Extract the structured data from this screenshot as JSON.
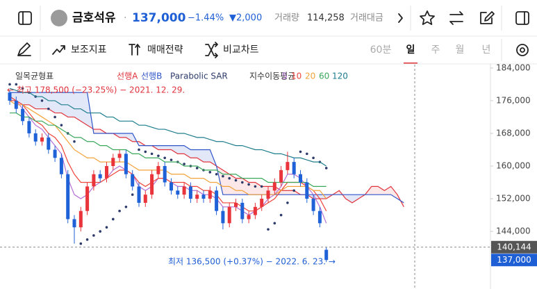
{
  "header": {
    "name": "금호석유",
    "price": "137,000",
    "change_rate": "−1.44%",
    "change": "▼2,000",
    "volume_label": "거래량",
    "volume": "114,258",
    "amount_label": "거래대금"
  },
  "toolbar": {
    "indicators": "보조지표",
    "strategy": "매매전략",
    "compare": "비교차트",
    "periods": [
      "60분",
      "일",
      "주",
      "월",
      "년"
    ],
    "selected_period": 1
  },
  "chart_data": {
    "type": "candlestick",
    "categories": [
      null,
      null,
      null,
      null,
      null,
      null,
      null,
      null,
      null,
      null,
      null,
      null,
      null,
      null,
      null,
      null,
      null,
      null,
      null,
      null,
      null,
      null,
      null,
      null,
      null,
      null,
      null,
      null,
      null,
      null,
      null,
      null,
      null,
      null,
      null,
      null,
      null,
      null,
      null,
      null,
      null,
      null,
      null,
      null,
      null,
      null,
      null,
      null,
      null,
      null,
      null,
      null,
      null,
      null,
      null,
      null,
      null,
      null,
      null,
      null,
      null,
      null
    ],
    "ylim": [
      129900,
      185000
    ],
    "yticks": [
      {
        "value": 144000,
        "label": "144,000"
      },
      {
        "value": 152000,
        "label": "152,000"
      },
      {
        "value": 160000,
        "label": "160,000"
      },
      {
        "value": 168000,
        "label": "168,000"
      },
      {
        "value": 176000,
        "label": "176,000"
      },
      {
        "value": 184000,
        "label": "184,000"
      }
    ],
    "grid": false,
    "candles": {
      "up_color": "#e8343a",
      "down_color": "#1f62d8",
      "open": [
        178000,
        176000,
        174000,
        171000,
        168000,
        166000,
        167000,
        164000,
        162000,
        158000,
        147000,
        145000,
        149000,
        155000,
        158000,
        157000,
        160000,
        162000,
        163000,
        158000,
        155000,
        151000,
        153000,
        158000,
        160000,
        156000,
        154000,
        153000,
        155000,
        152000,
        153000,
        152000,
        154000,
        149000,
        146000,
        150000,
        151000,
        147000,
        148000,
        150000,
        152000,
        154000,
        156000,
        159000,
        161000,
        158000,
        156000,
        152000,
        149000,
        139500,
        null,
        null,
        null,
        null,
        null,
        null,
        null,
        null,
        null,
        null,
        null,
        null
      ],
      "high": [
        178500,
        177000,
        175000,
        172000,
        169000,
        168000,
        168000,
        165000,
        163000,
        159000,
        148000,
        150000,
        156000,
        159000,
        159000,
        161000,
        163000,
        164000,
        164000,
        159000,
        156000,
        154000,
        159000,
        161000,
        161000,
        157000,
        155000,
        156000,
        156000,
        154000,
        154000,
        155000,
        155000,
        150000,
        151000,
        152000,
        152000,
        149000,
        151000,
        153000,
        155000,
        157000,
        160000,
        163500,
        162000,
        159000,
        157000,
        153000,
        150000,
        140100,
        null,
        null,
        null,
        null,
        null,
        null,
        null,
        null,
        null,
        null,
        null,
        null
      ],
      "low": [
        175000,
        173000,
        170000,
        167000,
        165000,
        165000,
        163000,
        161000,
        157000,
        146000,
        141000,
        144000,
        148000,
        154000,
        156000,
        156000,
        159000,
        161000,
        157000,
        154000,
        150000,
        150000,
        152000,
        157000,
        155000,
        153000,
        152000,
        152000,
        151000,
        151000,
        151000,
        151000,
        148000,
        144500,
        145000,
        149000,
        146000,
        146000,
        147000,
        149000,
        151000,
        153000,
        155000,
        158000,
        157000,
        155000,
        151000,
        148000,
        145000,
        136500,
        null,
        null,
        null,
        null,
        null,
        null,
        null,
        null,
        null,
        null,
        null,
        null
      ],
      "close": [
        176000,
        174000,
        171000,
        168000,
        166000,
        167000,
        164000,
        162000,
        158000,
        147000,
        145000,
        149000,
        155000,
        158000,
        157000,
        160000,
        162000,
        163000,
        158000,
        155000,
        151000,
        153000,
        158000,
        160000,
        156000,
        154000,
        153000,
        155000,
        152000,
        153000,
        152000,
        154000,
        149000,
        146000,
        150000,
        151000,
        147000,
        148000,
        150000,
        152000,
        154000,
        156000,
        159000,
        161000,
        158000,
        156000,
        152000,
        149000,
        146000,
        137000,
        null,
        null,
        null,
        null,
        null,
        null,
        null,
        null,
        null,
        null,
        null,
        null
      ]
    },
    "group_labels": [
      "일목균형표",
      "지수이동평균"
    ],
    "series": [
      {
        "name": "선행A",
        "color": "#e0333c",
        "style": "line",
        "cloud": true,
        "values": [
          176000,
          176000,
          175000,
          175000,
          174000,
          174000,
          174000,
          173000,
          173000,
          172000,
          172000,
          171000,
          170000,
          169000,
          169000,
          168000,
          168000,
          167000,
          167000,
          166000,
          166000,
          165000,
          165000,
          164000,
          164000,
          164000,
          163000,
          163000,
          162000,
          162000,
          161000,
          161000,
          160000,
          159000,
          158000,
          157000,
          157000,
          156000,
          156000,
          155000,
          155000,
          155000,
          154000,
          154000,
          154000,
          153000,
          153000,
          152000,
          152000,
          152000,
          153000,
          154000,
          152000,
          151000,
          152000,
          153000,
          155000,
          155000,
          154000,
          155000,
          153000,
          150000
        ]
      },
      {
        "name": "선행B",
        "color": "#2f56c9",
        "style": "line",
        "cloud": true,
        "values": [
          178000,
          178000,
          178000,
          178000,
          178000,
          178000,
          178000,
          178000,
          178000,
          178000,
          178000,
          178000,
          178000,
          168000,
          168000,
          168000,
          168000,
          168000,
          168000,
          168000,
          165000,
          165000,
          165000,
          165000,
          165000,
          165000,
          165000,
          165000,
          164000,
          164000,
          164000,
          164000,
          160000,
          153000,
          153000,
          153000,
          153000,
          153000,
          153000,
          153000,
          153000,
          153000,
          153000,
          153000,
          153000,
          153000,
          153000,
          153000,
          153000,
          153000,
          153000,
          153000,
          153000,
          153000,
          153000,
          153000,
          153000,
          153000,
          153000,
          153000,
          152000,
          151000
        ]
      },
      {
        "name": "Parabolic SAR",
        "color": "#2d3b6b",
        "style": "dots",
        "values": [
          180000,
          180000,
          179000,
          178000,
          177000,
          176000,
          174000,
          172000,
          170000,
          168000,
          166000,
          141000,
          142000,
          143000,
          144000,
          145000,
          147000,
          149000,
          150000,
          153000,
          164000,
          163500,
          163000,
          162500,
          162000,
          161500,
          161000,
          160500,
          160000,
          159500,
          159000,
          158500,
          158000,
          157500,
          157000,
          156500,
          156000,
          155500,
          155000,
          155000,
          144500,
          146000,
          148000,
          151000,
          154000,
          163500,
          163000,
          162000,
          161000,
          159500,
          null,
          null,
          null,
          null,
          null,
          null,
          null,
          null,
          null,
          null,
          null,
          null
        ]
      },
      {
        "name": "5",
        "color": "#b46fd6",
        "style": "line",
        "values": [
          177000,
          176000,
          174000,
          172000,
          170000,
          169000,
          167000,
          165000,
          163000,
          157000,
          153000,
          152000,
          153000,
          155000,
          156000,
          157000,
          159000,
          160000,
          159000,
          158000,
          155000,
          154000,
          155000,
          157000,
          157000,
          156000,
          155000,
          155000,
          154000,
          154000,
          153000,
          153000,
          152000,
          150000,
          150000,
          150000,
          149000,
          148000,
          149000,
          150000,
          152000,
          153000,
          155000,
          158000,
          158000,
          157000,
          155000,
          153000,
          150000,
          146000,
          null,
          null,
          null,
          null,
          null,
          null,
          null,
          null,
          null,
          null,
          null,
          null
        ]
      },
      {
        "name": "10",
        "color": "#f0443a",
        "style": "line",
        "values": [
          177000,
          176000,
          175000,
          173000,
          171000,
          170000,
          168000,
          167000,
          165000,
          161000,
          158000,
          156000,
          156000,
          156000,
          156000,
          157000,
          158000,
          159000,
          159000,
          158000,
          156000,
          155000,
          156000,
          157000,
          157000,
          156000,
          156000,
          156000,
          155000,
          155000,
          154000,
          154000,
          153000,
          151000,
          151000,
          151000,
          150000,
          149000,
          149000,
          150000,
          151000,
          152000,
          154000,
          156000,
          156000,
          156000,
          155000,
          154000,
          152000,
          149000,
          null,
          null,
          null,
          null,
          null,
          null,
          null,
          null,
          null,
          null,
          null,
          null
        ]
      },
      {
        "name": "20",
        "color": "#f2a33a",
        "style": "line",
        "values": [
          176000,
          175000,
          175000,
          174000,
          173000,
          172000,
          171000,
          170000,
          168000,
          166000,
          164000,
          163000,
          162000,
          162000,
          161000,
          161000,
          161000,
          161000,
          161000,
          160000,
          159000,
          159000,
          159000,
          159000,
          159000,
          158000,
          158000,
          158000,
          157000,
          157000,
          157000,
          156000,
          156000,
          155000,
          155000,
          154000,
          154000,
          153000,
          153000,
          153000,
          153000,
          153000,
          154000,
          155000,
          155000,
          155000,
          155000,
          154000,
          154000,
          152000,
          null,
          null,
          null,
          null,
          null,
          null,
          null,
          null,
          null,
          null,
          null,
          null
        ]
      },
      {
        "name": "60",
        "color": "#39a85a",
        "style": "line",
        "values": [
          173000,
          173000,
          172000,
          172000,
          171000,
          171000,
          170000,
          170000,
          169000,
          168000,
          167000,
          167000,
          166000,
          166000,
          165000,
          165000,
          164000,
          164000,
          164000,
          163000,
          163000,
          162000,
          162000,
          162000,
          161000,
          161000,
          161000,
          160000,
          160000,
          160000,
          159000,
          159000,
          159000,
          158000,
          158000,
          158000,
          157000,
          157000,
          157000,
          157000,
          156000,
          156000,
          156000,
          156000,
          156000,
          156000,
          156000,
          155000,
          155000,
          155000,
          null,
          null,
          null,
          null,
          null,
          null,
          null,
          null,
          null,
          null,
          null,
          null
        ]
      },
      {
        "name": "120",
        "color": "#1c7d8c",
        "style": "line",
        "values": [
          179000,
          178500,
          178000,
          178000,
          177000,
          177000,
          176000,
          176000,
          175000,
          175000,
          174000,
          174000,
          173000,
          173000,
          173000,
          172000,
          172000,
          171000,
          171000,
          171000,
          170000,
          170000,
          169500,
          169000,
          169000,
          168500,
          168000,
          168000,
          167500,
          167000,
          167000,
          166500,
          166000,
          166000,
          165500,
          165000,
          165000,
          164500,
          164000,
          164000,
          163500,
          163000,
          163000,
          162500,
          162000,
          162000,
          161500,
          161000,
          161000,
          160000,
          null,
          null,
          null,
          null,
          null,
          null,
          null,
          null,
          null,
          null,
          null,
          null
        ]
      }
    ],
    "annotations": [
      {
        "text": "← 최고 178,500 (−23.25%) − 2021. 12. 29.",
        "value": 178500,
        "color": "#e0333c"
      },
      {
        "text": "최저 136,500 (+0.37%) − 2022. 6. 23. →",
        "value": 136500,
        "color": "#1f5fd6"
      }
    ],
    "price_labels": [
      {
        "value": 140144,
        "label": "140,144",
        "color": "#555555"
      },
      {
        "value": 137000,
        "label": "137,000",
        "color": "#1f5fd6"
      }
    ]
  }
}
